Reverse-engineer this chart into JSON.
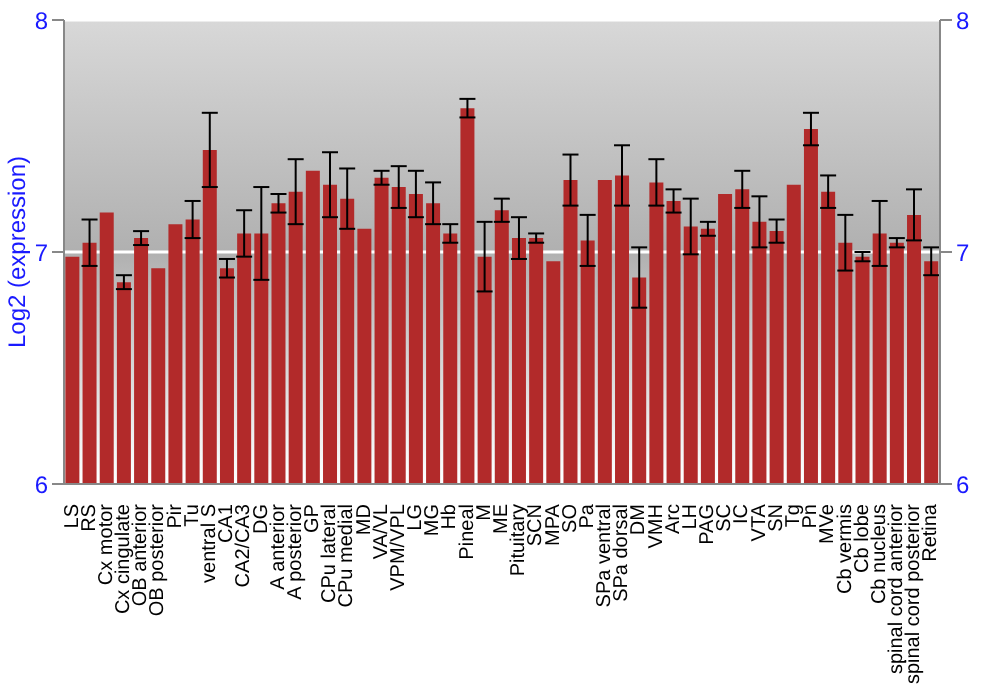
{
  "chart_data": {
    "type": "bar",
    "ylabel": "Log2 (expression)",
    "categories": [
      "LS",
      "RS",
      "Cx motor",
      "Cx cingulate",
      "OB anterior",
      "OB posterior",
      "Pir",
      "Tu",
      "ventral S",
      "CA1",
      "CA2/CA3",
      "DG",
      "A anterior",
      "A posterior",
      "GP",
      "CPu lateral",
      "CPu medial",
      "MD",
      "VA/VL",
      "VPM/VPL",
      "LG",
      "MG",
      "Hb",
      "Pineal",
      "M",
      "ME",
      "Pituitary",
      "SCN",
      "MPA",
      "SO",
      "Pa",
      "SPa ventral",
      "SPa dorsal",
      "DM",
      "VMH",
      "Arc",
      "LH",
      "PAG",
      "SC",
      "IC",
      "VTA",
      "SN",
      "Tg",
      "Pn",
      "MVe",
      "Cb vermis",
      "Cb lobe",
      "Cb nucleus",
      "spinal cord anterior",
      "spinal cord posterior",
      "Retina"
    ],
    "values": [
      6.98,
      7.04,
      7.17,
      6.87,
      7.06,
      6.93,
      7.12,
      7.14,
      7.44,
      6.93,
      7.08,
      7.08,
      7.21,
      7.26,
      7.35,
      7.29,
      7.23,
      7.1,
      7.32,
      7.28,
      7.25,
      7.21,
      7.08,
      7.62,
      6.98,
      7.18,
      7.06,
      7.06,
      6.96,
      7.31,
      7.05,
      7.31,
      7.33,
      6.89,
      7.3,
      7.22,
      7.11,
      7.1,
      7.25,
      7.27,
      7.13,
      7.09,
      7.29,
      7.53,
      7.26,
      7.04,
      6.98,
      7.08,
      7.04,
      7.16,
      6.96
    ],
    "errors": [
      null,
      0.1,
      null,
      0.03,
      0.03,
      null,
      null,
      0.08,
      0.16,
      0.04,
      0.1,
      0.2,
      0.04,
      0.14,
      null,
      0.14,
      0.13,
      null,
      0.03,
      0.09,
      0.1,
      0.09,
      0.04,
      0.04,
      0.15,
      0.05,
      0.09,
      0.02,
      null,
      0.11,
      0.11,
      null,
      0.13,
      0.13,
      0.1,
      0.05,
      0.12,
      0.03,
      null,
      0.08,
      0.11,
      0.05,
      null,
      0.07,
      0.07,
      0.12,
      0.02,
      0.14,
      0.02,
      0.11,
      0.06
    ],
    "color": "#b22a2a",
    "ylim": [
      6,
      8
    ],
    "yticks": [
      6,
      7,
      8
    ],
    "y2lim": [
      6,
      8
    ],
    "y2ticks": [
      6,
      7,
      8
    ],
    "grid": "y"
  }
}
